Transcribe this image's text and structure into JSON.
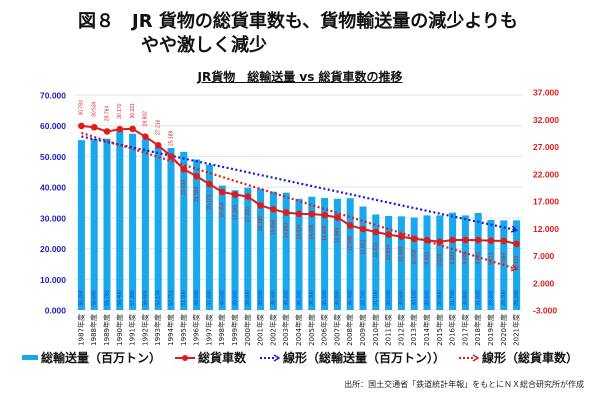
{
  "figure": {
    "title_line1": "図８　JR 貨物の総貨車数も、貨物輸送量の減少よりも",
    "title_line2": "やや激しく減少"
  },
  "source": "出所：国土交通省「鉄道統計年報」をもとにＮＸ総合研究所が作成",
  "chart_data": {
    "type": "bar",
    "title": "JR貨物　総輸送量 vs 総貨車数の推移",
    "xlabel": "",
    "ylabel": "",
    "grid": true,
    "legend_position": "bottom",
    "categories": [
      "1987年度",
      "1988年度",
      "1989年度",
      "1990年度",
      "1991年度",
      "1992年度",
      "1993年度",
      "1994年度",
      "1995年度",
      "1996年度",
      "1997年度",
      "1998年度",
      "1999年度",
      "2000年度",
      "2001年度",
      "2002年度",
      "2003年度",
      "2004年度",
      "2005年度",
      "2006年度",
      "2007年度",
      "2008年度",
      "2009年度",
      "2010年度",
      "2011年度",
      "2012年度",
      "2013年度",
      "2014年度",
      "2015年度",
      "2016年度",
      "2017年度",
      "2018年度",
      "2019年度",
      "2020年度",
      "2021年度"
    ],
    "y_left": {
      "min": 0,
      "max": 70000,
      "step": 10000,
      "tick_labels": [
        "0.000",
        "10.000",
        "20.000",
        "30.000",
        "40.000",
        "50.000",
        "60.000",
        "70.000"
      ],
      "color": "#1f1fbf"
    },
    "y_right": {
      "min": -3000,
      "max": 37000,
      "step": 5000,
      "tick_labels": [
        "-3.000",
        "2.000",
        "7.000",
        "12.000",
        "17.000",
        "22.000",
        "27.000",
        "32.000",
        "37.000"
      ],
      "color": "#e11b1b"
    },
    "series": [
      {
        "name": "総輸送量（百万トン）",
        "type": "bar",
        "axis": "left",
        "color": "#18a8ec",
        "values": [
          55294,
          55695,
          55783,
          58400,
          57390,
          55603,
          53178,
          52753,
          51500,
          49000,
          47300,
          40500,
          39000,
          39800,
          39500,
          38500,
          38200,
          36200,
          36900,
          36500,
          36200,
          36400,
          33700,
          31100,
          30600,
          30500,
          30100,
          30800,
          30800,
          31700,
          30800,
          31600,
          29300,
          29200,
          29200
        ]
      },
      {
        "name": "総貨車数",
        "type": "line",
        "axis": "right",
        "color": "#e11b1b",
        "labels_shown": true,
        "values": [
          30783,
          30534,
          29764,
          30170,
          30231,
          28802,
          27216,
          25189,
          22818,
          21548,
          20101,
          18654,
          18185,
          17810,
          16185,
          15456,
          14883,
          14634,
          14606,
          14404,
          13985,
          12508,
          11851,
          11310,
          10834,
          10468,
          10039,
          9803,
          9525,
          9833,
          9849,
          9832,
          9714,
          9684,
          9123
        ]
      },
      {
        "name": "線形（総輸送量（百万トン））",
        "type": "trendline",
        "axis": "left",
        "color": "#1a1ad6",
        "values": [
          56500,
          26000
        ]
      },
      {
        "name": "線形（総貨車数）",
        "type": "trendline",
        "axis": "right",
        "color": "#e11b1b",
        "values": [
          29500,
          4500
        ]
      }
    ]
  },
  "legend": [
    {
      "label": "総輸送量（百万トン）",
      "kind": "bar",
      "color": "#18a8ec"
    },
    {
      "label": "総貨車数",
      "kind": "line-marker",
      "color": "#e11b1b"
    },
    {
      "label": "線形（総輸送量（百万トン））",
      "kind": "dotted-arrow",
      "color": "#1a1ad6"
    },
    {
      "label": "線形（総貨車数）",
      "kind": "dotted-arrow",
      "color": "#e11b1b"
    }
  ]
}
